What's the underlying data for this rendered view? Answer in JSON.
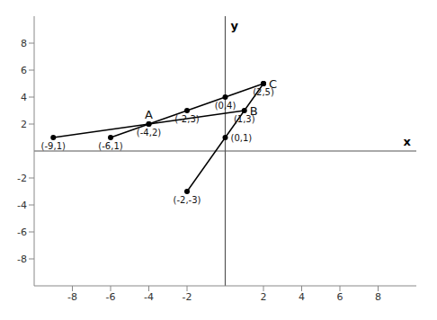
{
  "chart_data": {
    "type": "line",
    "x_label": "x",
    "y_label": "y",
    "xlim": [
      -10,
      10
    ],
    "ylim": [
      -10,
      10
    ],
    "xticks": [
      -8,
      -6,
      -4,
      -2,
      2,
      4,
      6,
      8
    ],
    "yticks": [
      -8,
      -6,
      -4,
      -2,
      2,
      4,
      6,
      8
    ],
    "grid": false,
    "series": [
      {
        "x": [
          -9,
          -4,
          1
        ],
        "values": [
          1,
          2,
          3
        ],
        "color": "#000000",
        "marker": "circle"
      },
      {
        "x": [
          -6,
          -4,
          -2,
          0,
          2
        ],
        "values": [
          1,
          2,
          3,
          4,
          5
        ],
        "color": "#000000",
        "marker": "circle"
      },
      {
        "x": [
          -2,
          0,
          2
        ],
        "values": [
          -3,
          1,
          5
        ],
        "color": "#000000",
        "marker": "circle"
      }
    ],
    "annotations": [
      {
        "x": -9,
        "y": 1,
        "text": "(-9,1)"
      },
      {
        "x": -6,
        "y": 1,
        "text": "(-6,1)"
      },
      {
        "x": -4,
        "y": 2,
        "text": "(-4,2)"
      },
      {
        "x": -2,
        "y": 3,
        "text": "(-2,3)"
      },
      {
        "x": 0,
        "y": 4,
        "text": "(0,4)"
      },
      {
        "x": 2,
        "y": 5,
        "text": "(2,5)"
      },
      {
        "x": 1,
        "y": 3,
        "text": "(1,3)"
      },
      {
        "x": 0,
        "y": 1,
        "text": "(0,1)"
      },
      {
        "x": -2,
        "y": -3,
        "text": "(-2,-3)"
      },
      {
        "x": -4,
        "y": 2,
        "text": "A"
      },
      {
        "x": 1,
        "y": 3,
        "text": "B"
      },
      {
        "x": 2,
        "y": 5,
        "text": "C"
      }
    ]
  }
}
